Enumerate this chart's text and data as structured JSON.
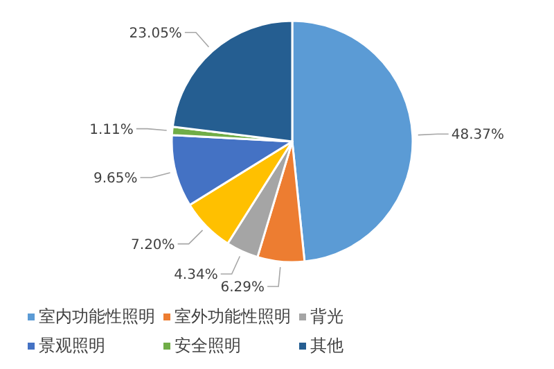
{
  "chart_data": {
    "type": "pie",
    "categories": [
      "室内功能性照明",
      "室外功能性照明",
      "背光",
      null,
      "景观照明",
      "安全照明",
      "其他"
    ],
    "values": [
      48.37,
      6.29,
      4.34,
      7.2,
      9.65,
      1.11,
      23.05
    ],
    "value_labels": [
      "48.37%",
      "6.29%",
      "4.34%",
      "7.20%",
      "9.65%",
      "1.11%",
      "23.05%"
    ],
    "colors": [
      "#5b9bd5",
      "#ed7d31",
      "#a5a5a5",
      "#ffc000",
      "#4472c4",
      "#70ad47",
      "#255e91"
    ],
    "legend": "bottom left"
  }
}
